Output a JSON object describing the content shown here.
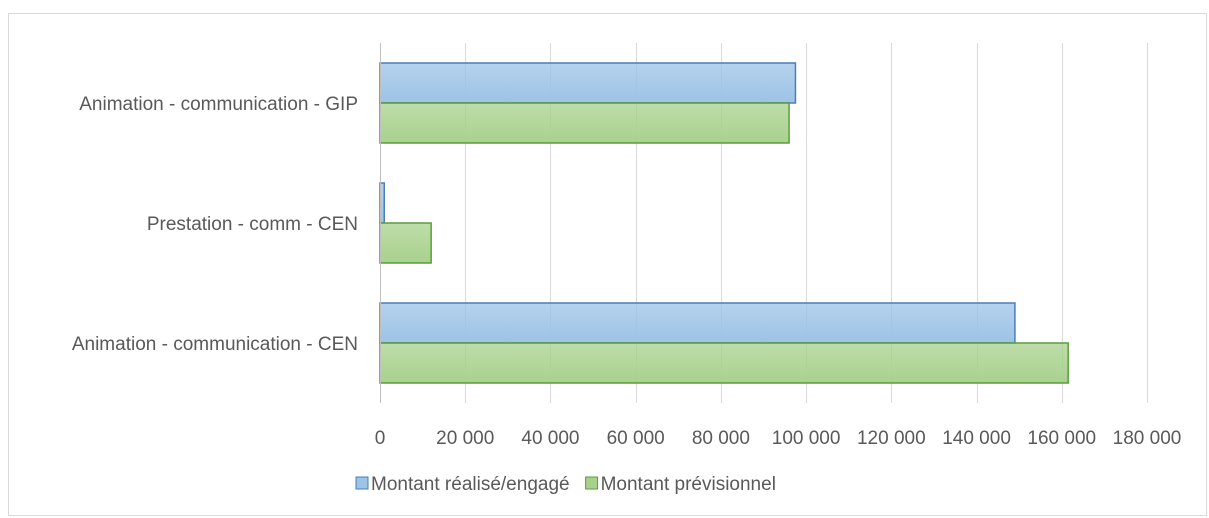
{
  "chart_data": {
    "type": "bar",
    "orientation": "horizontal",
    "title": "",
    "xlabel": "",
    "ylabel": "",
    "categories": [
      "Animation - communication - GIP",
      "Prestation - comm - CEN",
      "Animation - communication - CEN"
    ],
    "series": [
      {
        "name": "Montant réalisé/engagé",
        "color": "#9dc3e6",
        "border": "#4a7ebb",
        "values": [
          97500,
          1000,
          149000
        ]
      },
      {
        "name": "Montant prévisionnel",
        "color": "#a9d18e",
        "border": "#5a9e3a",
        "values": [
          96000,
          12000,
          161500
        ]
      }
    ],
    "xlim": [
      0,
      180000
    ],
    "x_ticks": [
      0,
      20000,
      40000,
      60000,
      80000,
      100000,
      120000,
      140000,
      160000,
      180000
    ],
    "x_tick_labels": [
      "0",
      "20 000",
      "40 000",
      "60 000",
      "80 000",
      "100 000",
      "120 000",
      "140 000",
      "160 000",
      "180 000"
    ],
    "grid": "vertical",
    "legend_position": "bottom"
  }
}
